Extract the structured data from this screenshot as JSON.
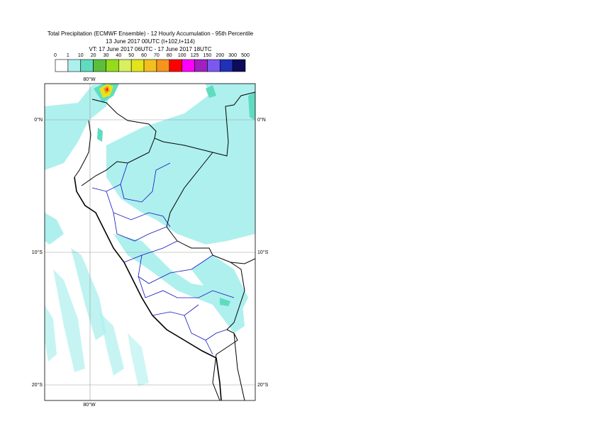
{
  "header": {
    "title": [
      "Total Precipitation (ECMWF Ensemble) - 12 Hourly Accumulation - 95th Percentile",
      "13 June 2017 00UTC (t+102,t+114)",
      "VT: 17 June 2017 06UTC - 17 June 2017 18UTC"
    ]
  },
  "legend": {
    "labels": [
      "0",
      "1",
      "10",
      "20",
      "30",
      "40",
      "50",
      "60",
      "70",
      "80",
      "100",
      "125",
      "150",
      "200",
      "300",
      "500"
    ],
    "colors": [
      "#ffffff",
      "#aef0ee",
      "#5fdcc0",
      "#5cbf3c",
      "#93dc1c",
      "#d8f060",
      "#e4e41c",
      "#f2c01e",
      "#f7941d",
      "#ff0000",
      "#ff00ff",
      "#a020c0",
      "#7b58f0",
      "#2030b8",
      "#0c0c5a"
    ]
  },
  "map": {
    "lon_labels": [
      "80°W"
    ],
    "lat_labels": [
      "0°N",
      "10°S",
      "20°S"
    ]
  }
}
